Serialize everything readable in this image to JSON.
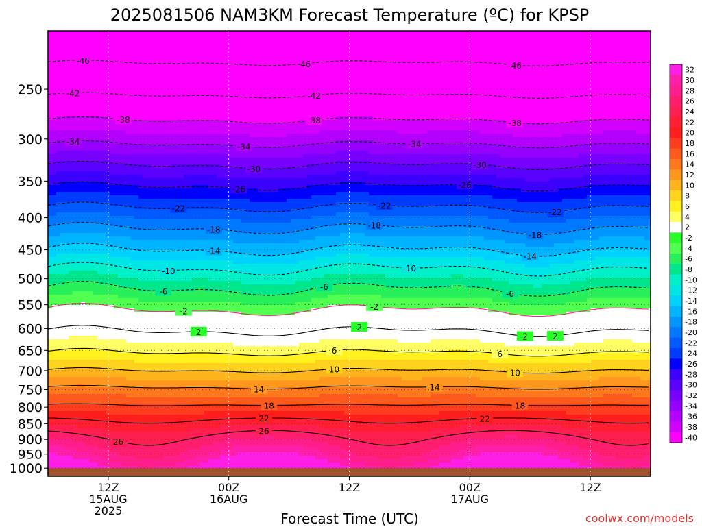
{
  "title": "2025081506 NAM3KM Forecast Temperature (ºC) for KPSP",
  "credit": "coolwx.com/models",
  "chart_data": {
    "type": "heatmap",
    "title": "2025081506 NAM3KM Forecast Temperature (ºC) for KPSP",
    "xlabel": "Forecast Time (UTC)",
    "ylabel": "",
    "y_scale": "log-pressure",
    "y_range_hpa": [
      1030,
      202
    ],
    "x_range_hours": [
      0,
      60
    ],
    "grid": true,
    "y_ticks": [
      250,
      300,
      350,
      400,
      450,
      500,
      550,
      600,
      650,
      700,
      750,
      800,
      850,
      900,
      950,
      1000
    ],
    "x_ticks": [
      {
        "hour": 6,
        "lines": [
          "12Z",
          "15AUG",
          "2025"
        ]
      },
      {
        "hour": 18,
        "lines": [
          "00Z",
          "16AUG"
        ]
      },
      {
        "hour": 30,
        "lines": [
          "12Z"
        ]
      },
      {
        "hour": 42,
        "lines": [
          "00Z",
          "17AUG"
        ]
      },
      {
        "hour": 54,
        "lines": [
          "12Z"
        ]
      }
    ],
    "profile_hpa": [
      1000,
      950,
      900,
      850,
      800,
      750,
      700,
      650,
      600,
      550,
      500,
      450,
      400,
      350,
      300,
      250,
      200
    ],
    "profile_temp": [
      34,
      30,
      27,
      23,
      18.5,
      14.5,
      10,
      5.5,
      1.5,
      -3,
      -8,
      -14,
      -20,
      -27,
      -35,
      -43,
      -50
    ],
    "diurnal_amplitude_near_surface": 4,
    "contours": [
      {
        "level": -46,
        "labels_at_hours": [
          3.5,
          25.5,
          46.5
        ]
      },
      {
        "level": -42,
        "labels_at_hours": [
          2.5,
          26.5
        ]
      },
      {
        "level": -38,
        "labels_at_hours": [
          7.5,
          26.5,
          46.5
        ]
      },
      {
        "level": -34,
        "labels_at_hours": [
          2.5,
          19.5,
          36.5
        ]
      },
      {
        "level": -30,
        "labels_at_hours": [
          20.5,
          43
        ]
      },
      {
        "level": -26,
        "labels_at_hours": [
          19,
          41.5
        ]
      },
      {
        "level": -22,
        "labels_at_hours": [
          13,
          33.5,
          50.5
        ]
      },
      {
        "level": -18,
        "labels_at_hours": [
          16.5,
          32.5,
          48.5
        ]
      },
      {
        "level": -14,
        "labels_at_hours": [
          16.5,
          48
        ]
      },
      {
        "level": -10,
        "labels_at_hours": [
          12,
          36
        ]
      },
      {
        "level": -6,
        "labels_at_hours": [
          11.5,
          27.5,
          46
        ]
      },
      {
        "level": -2,
        "labels_at_hours": [
          13.5,
          32.5
        ]
      },
      {
        "level": 2,
        "labels_at_hours": [
          15,
          31,
          47.5,
          50.5
        ]
      },
      {
        "level": 6,
        "labels_at_hours": [
          28.5,
          45
        ]
      },
      {
        "level": 10,
        "labels_at_hours": [
          28.5,
          46.5
        ]
      },
      {
        "level": 14,
        "labels_at_hours": [
          21,
          38.5
        ]
      },
      {
        "level": 18,
        "labels_at_hours": [
          22,
          47
        ]
      },
      {
        "level": 22,
        "labels_at_hours": [
          21.5,
          43.5
        ]
      },
      {
        "level": 26,
        "labels_at_hours": [
          21.5,
          7
        ]
      }
    ],
    "colorbar": {
      "labels": [
        "32",
        "30",
        "28",
        "26",
        "24",
        "22",
        "20",
        "18",
        "16",
        "14",
        "12",
        "10",
        "8",
        "6",
        "4",
        "2",
        "-2",
        "-4",
        "-6",
        "-8",
        "-10",
        "-12",
        "-14",
        "-16",
        "-18",
        "-20",
        "-22",
        "-24",
        "-26",
        "-28",
        "-30",
        "-32",
        "-34",
        "-36",
        "-38",
        "-40"
      ],
      "colors": [
        "#ff1ee6",
        "#ff1eaa",
        "#ff1e8c",
        "#ff1e6e",
        "#ff1e50",
        "#ff1e32",
        "#ff1e1e",
        "#ff3c1e",
        "#ff5a1e",
        "#ff781e",
        "#ff961e",
        "#ffb41e",
        "#ffd21e",
        "#fff01e",
        "#ffff64",
        "#ffffff",
        "#28ff28",
        "#50ff50",
        "#28f05a",
        "#00e68c",
        "#00f0c8",
        "#00e6e6",
        "#00d2ff",
        "#00b4ff",
        "#0096ff",
        "#0078ff",
        "#005aff",
        "#003cff",
        "#0000ff",
        "#3c00ff",
        "#5a00ff",
        "#7800ff",
        "#9600ff",
        "#b400ff",
        "#d200ff",
        "#ff00ff"
      ]
    }
  }
}
